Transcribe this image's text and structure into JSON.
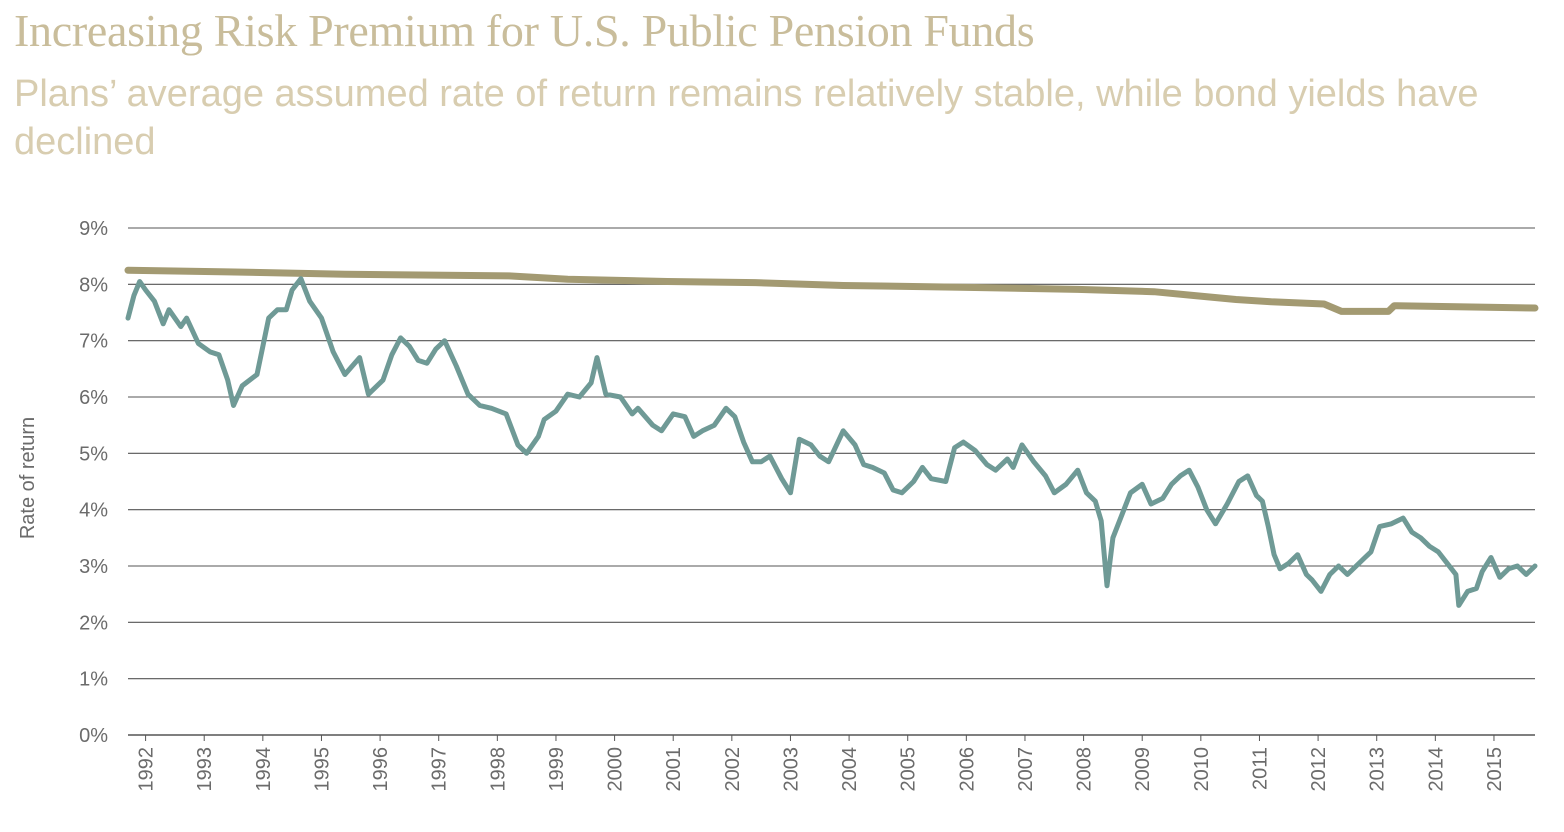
{
  "chart_data": {
    "type": "line",
    "title": "Increasing Risk Premium for U.S. Public Pension Funds",
    "subtitle": "Plans’ average assumed rate of return remains relatively stable, while bond yields have declined",
    "ylabel": "Rate of return",
    "xlabel": "",
    "ylim": [
      0,
      9
    ],
    "y_ticks": [
      "0%",
      "1%",
      "2%",
      "3%",
      "4%",
      "5%",
      "6%",
      "7%",
      "8%",
      "9%"
    ],
    "x_ticks": [
      "1992",
      "1993",
      "1994",
      "1995",
      "1996",
      "1997",
      "1998",
      "1999",
      "2000",
      "2001",
      "2002",
      "2003",
      "2004",
      "2005",
      "2006",
      "2007",
      "2008",
      "2009",
      "2010",
      "2011",
      "2012",
      "2013",
      "2014",
      "2015"
    ],
    "xlim": [
      1991.8,
      2015.8
    ],
    "grid": true,
    "legend": "none",
    "colors": {
      "assumed": "#a39a72",
      "bond": "#6f9a96",
      "grid": "#555555"
    },
    "series": [
      {
        "key": "assumed",
        "x": [
          1991.8,
          1993.5,
          1995.5,
          1998.3,
          1999.3,
          2001.0,
          2002.5,
          2004.0,
          2006.0,
          2008.0,
          2009.3,
          2010.0,
          2010.7,
          2011.3,
          2012.2,
          2012.5,
          2013.3,
          2013.4,
          2015.8
        ],
        "y": [
          8.25,
          8.22,
          8.18,
          8.15,
          8.09,
          8.05,
          8.03,
          7.98,
          7.95,
          7.91,
          7.87,
          7.8,
          7.73,
          7.69,
          7.65,
          7.52,
          7.52,
          7.62,
          7.58
        ]
      },
      {
        "key": "bond",
        "x": [
          1991.8,
          1991.9,
          1992.0,
          1992.1,
          1992.25,
          1992.4,
          1992.5,
          1992.7,
          1992.8,
          1993.0,
          1993.2,
          1993.35,
          1993.5,
          1993.6,
          1993.75,
          1994.0,
          1994.2,
          1994.35,
          1994.5,
          1994.6,
          1994.75,
          1994.9,
          1995.1,
          1995.3,
          1995.5,
          1995.75,
          1995.9,
          1996.15,
          1996.3,
          1996.45,
          1996.6,
          1996.75,
          1996.9,
          1997.05,
          1997.2,
          1997.4,
          1997.6,
          1997.8,
          1998.0,
          1998.25,
          1998.45,
          1998.6,
          1998.8,
          1998.9,
          1999.1,
          1999.3,
          1999.5,
          1999.7,
          1999.8,
          1999.95,
          2000.2,
          2000.4,
          2000.5,
          2000.75,
          2000.9,
          2001.1,
          2001.3,
          2001.45,
          2001.6,
          2001.8,
          2002.0,
          2002.15,
          2002.3,
          2002.45,
          2002.6,
          2002.75,
          2002.95,
          2003.1,
          2003.25,
          2003.45,
          2003.6,
          2003.75,
          2004.0,
          2004.2,
          2004.35,
          2004.5,
          2004.7,
          2004.85,
          2005.0,
          2005.2,
          2005.35,
          2005.5,
          2005.75,
          2005.9,
          2006.05,
          2006.25,
          2006.45,
          2006.6,
          2006.8,
          2006.9,
          2007.05,
          2007.25,
          2007.45,
          2007.6,
          2007.8,
          2008.0,
          2008.15,
          2008.3,
          2008.4,
          2008.5,
          2008.6,
          2008.75,
          2008.9,
          2009.1,
          2009.25,
          2009.45,
          2009.6,
          2009.75,
          2009.9,
          2010.05,
          2010.2,
          2010.35,
          2010.55,
          2010.75,
          2010.9,
          2011.05,
          2011.15,
          2011.25,
          2011.35,
          2011.45,
          2011.6,
          2011.75,
          2011.9,
          2012.0,
          2012.15,
          2012.3,
          2012.45,
          2012.6,
          2012.75,
          2012.9,
          2013.0,
          2013.15,
          2013.35,
          2013.55,
          2013.7,
          2013.85,
          2014.0,
          2014.15,
          2014.3,
          2014.45,
          2014.5,
          2014.65,
          2014.8,
          2014.9,
          2015.05,
          2015.2,
          2015.35,
          2015.5,
          2015.65,
          2015.8
        ],
        "y": [
          7.4,
          7.8,
          8.05,
          7.9,
          7.7,
          7.3,
          7.55,
          7.25,
          7.4,
          6.95,
          6.8,
          6.75,
          6.3,
          5.85,
          6.2,
          6.4,
          7.4,
          7.55,
          7.55,
          7.9,
          8.1,
          7.7,
          7.4,
          6.8,
          6.4,
          6.7,
          6.05,
          6.3,
          6.75,
          7.05,
          6.9,
          6.65,
          6.6,
          6.85,
          7.0,
          6.55,
          6.05,
          5.85,
          5.8,
          5.7,
          5.15,
          5.0,
          5.3,
          5.6,
          5.75,
          6.05,
          6.0,
          6.25,
          6.7,
          6.05,
          6.0,
          5.7,
          5.8,
          5.5,
          5.4,
          5.7,
          5.65,
          5.3,
          5.4,
          5.5,
          5.8,
          5.65,
          5.2,
          4.85,
          4.85,
          4.95,
          4.55,
          4.3,
          5.25,
          5.15,
          4.95,
          4.85,
          5.4,
          5.15,
          4.8,
          4.75,
          4.65,
          4.35,
          4.3,
          4.5,
          4.75,
          4.55,
          4.5,
          5.1,
          5.2,
          5.05,
          4.8,
          4.7,
          4.9,
          4.75,
          5.15,
          4.85,
          4.6,
          4.3,
          4.45,
          4.7,
          4.3,
          4.15,
          3.8,
          2.65,
          3.5,
          3.9,
          4.3,
          4.45,
          4.1,
          4.2,
          4.45,
          4.6,
          4.7,
          4.4,
          4.0,
          3.75,
          4.1,
          4.5,
          4.6,
          4.25,
          4.15,
          3.7,
          3.2,
          2.95,
          3.05,
          3.2,
          2.85,
          2.75,
          2.55,
          2.85,
          3.0,
          2.85,
          3.0,
          3.15,
          3.25,
          3.7,
          3.75,
          3.85,
          3.6,
          3.5,
          3.35,
          3.25,
          3.05,
          2.85,
          2.3,
          2.55,
          2.6,
          2.9,
          3.15,
          2.8,
          2.95,
          3.0,
          2.85,
          3.0
        ]
      }
    ]
  }
}
